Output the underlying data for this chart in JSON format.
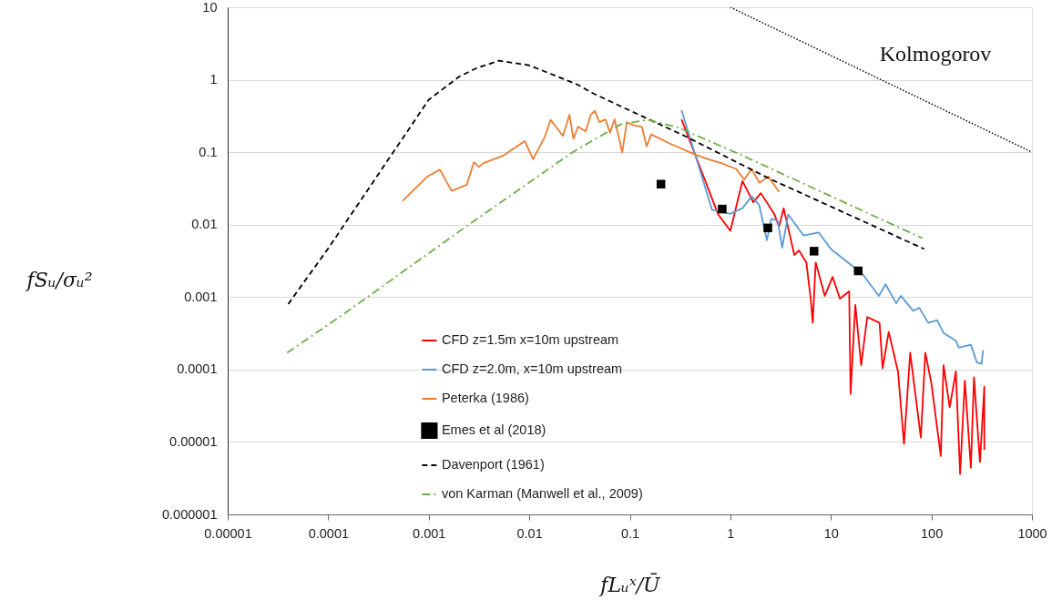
{
  "chart_data": {
    "type": "line",
    "xlabel": "fLᵤˣ/Ū",
    "ylabel": "fSᵤ/σᵤ²",
    "log": "xy",
    "grid": "y",
    "legend": "bottom",
    "xlim": [
      1e-05,
      1000
    ],
    "ylim": [
      1e-06,
      10
    ],
    "xticks": [
      {
        "value": 1e-05,
        "label": "0.00001"
      },
      0.0001,
      0.001,
      0.01,
      0.1,
      1,
      10,
      100,
      1000
    ],
    "yticks": [
      {
        "value": 1e-06,
        "label": "0.000001"
      },
      {
        "value": 1e-05,
        "label": "0.00001"
      },
      0.0001,
      0.001,
      0.01,
      0.1,
      1,
      10
    ],
    "annotations": [
      "Kolmogorov"
    ],
    "series": [
      {
        "name": "CFD z=1.5m x=10m upstream",
        "line_style": "solid",
        "color": "#ff0000",
        "x": [
          0.327,
          0.757,
          1,
          1.32,
          1.69,
          2.01,
          2.75,
          3.05,
          3.39,
          4.33,
          4.8,
          5.7,
          6.3,
          6.6,
          7.06,
          8.7,
          10.4,
          12.3,
          15.2,
          15.7,
          17.5,
          20,
          23,
          30.5,
          32.7,
          37.6,
          46.5,
          53.4,
          61.5,
          78.5,
          87,
          100,
          124,
          132,
          152,
          175,
          193,
          215,
          247,
          265,
          304,
          336,
          336
        ],
        "values": [
          0.284,
          0.0138,
          0.0082,
          0.04,
          0.0204,
          0.0272,
          0.0138,
          0.0094,
          0.0168,
          0.0038,
          0.0044,
          0.003,
          0.00094,
          0.00044,
          0.003,
          0.00104,
          0.0019,
          0.00095,
          0.0012,
          4.6e-05,
          0.00078,
          0.000115,
          0.00053,
          0.00044,
          0.000104,
          0.00033,
          9.4e-05,
          9.4e-06,
          0.00017,
          1.15e-05,
          0.00017,
          6.4e-05,
          6.4e-06,
          0.000115,
          3e-05,
          9.4e-05,
          3.6e-06,
          7e-05,
          4.4e-06,
          7.8e-05,
          5.3e-06,
          5.8e-05,
          7.8e-06
        ]
      },
      {
        "name": "CFD z=2.0m, x=10m upstream",
        "line_style": "solid",
        "color": "#5b9bd5",
        "x": [
          0.327,
          0.658,
          1,
          1.32,
          1.63,
          1.94,
          2.31,
          2.56,
          2.95,
          3.28,
          3.76,
          5.34,
          7.56,
          10,
          16.3,
          20,
          30,
          35,
          44.6,
          49.6,
          65.8,
          75.8,
          93,
          114,
          132,
          175,
          187,
          247,
          283,
          315,
          327
        ],
        "values": [
          0.379,
          0.016,
          0.0141,
          0.0169,
          0.0246,
          0.0185,
          0.0061,
          0.012,
          0.0114,
          0.0048,
          0.0138,
          0.0071,
          0.0078,
          0.0046,
          0.0027,
          0.0022,
          0.00104,
          0.0015,
          0.00082,
          0.00104,
          0.000645,
          0.00071,
          0.00044,
          0.00048,
          0.00032,
          0.00025,
          0.0002,
          0.00022,
          0.000126,
          0.00012,
          0.000185
        ]
      },
      {
        "name": "Peterka (1986)",
        "line_style": "solid",
        "color": "#ed7d31",
        "x": [
          0.00055,
          0.00097,
          0.00129,
          0.00169,
          0.00239,
          0.00281,
          0.00316,
          0.00351,
          0.00553,
          0.00901,
          0.0109,
          0.0142,
          0.0163,
          0.0216,
          0.0251,
          0.0275,
          0.0305,
          0.0364,
          0.0409,
          0.0449,
          0.0498,
          0.0572,
          0.0635,
          0.0705,
          0.0841,
          0.0933,
          0.107,
          0.132,
          0.147,
          0.163,
          0.248,
          0.433,
          0.572,
          0.811,
          1.15,
          1.37,
          1.63,
          1.94,
          2.39,
          3.05
        ],
        "values": [
          0.0213,
          0.046,
          0.0574,
          0.0292,
          0.0355,
          0.0729,
          0.0625,
          0.0708,
          0.0899,
          0.1425,
          0.0801,
          0.16,
          0.279,
          0.168,
          0.328,
          0.153,
          0.224,
          0.194,
          0.328,
          0.373,
          0.259,
          0.284,
          0.185,
          0.284,
          0.099,
          0.259,
          0.237,
          0.224,
          0.12,
          0.176,
          0.132,
          0.0944,
          0.0818,
          0.0708,
          0.0584,
          0.0418,
          0.0584,
          0.0379,
          0.046,
          0.0284
        ]
      },
      {
        "name": "Emes et al (2018)",
        "type": "scatter",
        "marker": "square",
        "color": "#000000",
        "x": [
          0.204,
          0.83,
          2.36,
          6.8,
          18.7
        ],
        "values": [
          0.0362,
          0.0164,
          0.009,
          0.0043,
          0.0023
        ]
      },
      {
        "name": "Davenport (1961)",
        "line_style": "dashed",
        "color": "#000000",
        "x": [
          4e-05,
          0.0001,
          0.001,
          0.002,
          0.003,
          0.005,
          0.01,
          0.03,
          0.043,
          0.1,
          0.35,
          2.46,
          85
        ],
        "values": [
          0.0008,
          0.0047,
          0.53,
          1.1,
          1.45,
          1.83,
          1.58,
          0.86,
          0.65,
          0.376,
          0.168,
          0.043,
          0.0046
        ]
      },
      {
        "name": "von Karman (Manwell et al., 2009)",
        "line_style": "dashdot",
        "color": "#70ad47",
        "x": [
          3.9e-05,
          0.000137,
          0.0025,
          0.027,
          0.08,
          0.15,
          0.3,
          1.23,
          81
        ],
        "values": [
          0.00017,
          0.00056,
          0.01,
          0.1,
          0.24,
          0.28,
          0.22,
          0.094,
          0.0065
        ]
      },
      {
        "line_style": "dotted",
        "color": "#000000",
        "x": [
          1,
          1000
        ],
        "values": [
          10,
          0.1
        ]
      }
    ]
  }
}
